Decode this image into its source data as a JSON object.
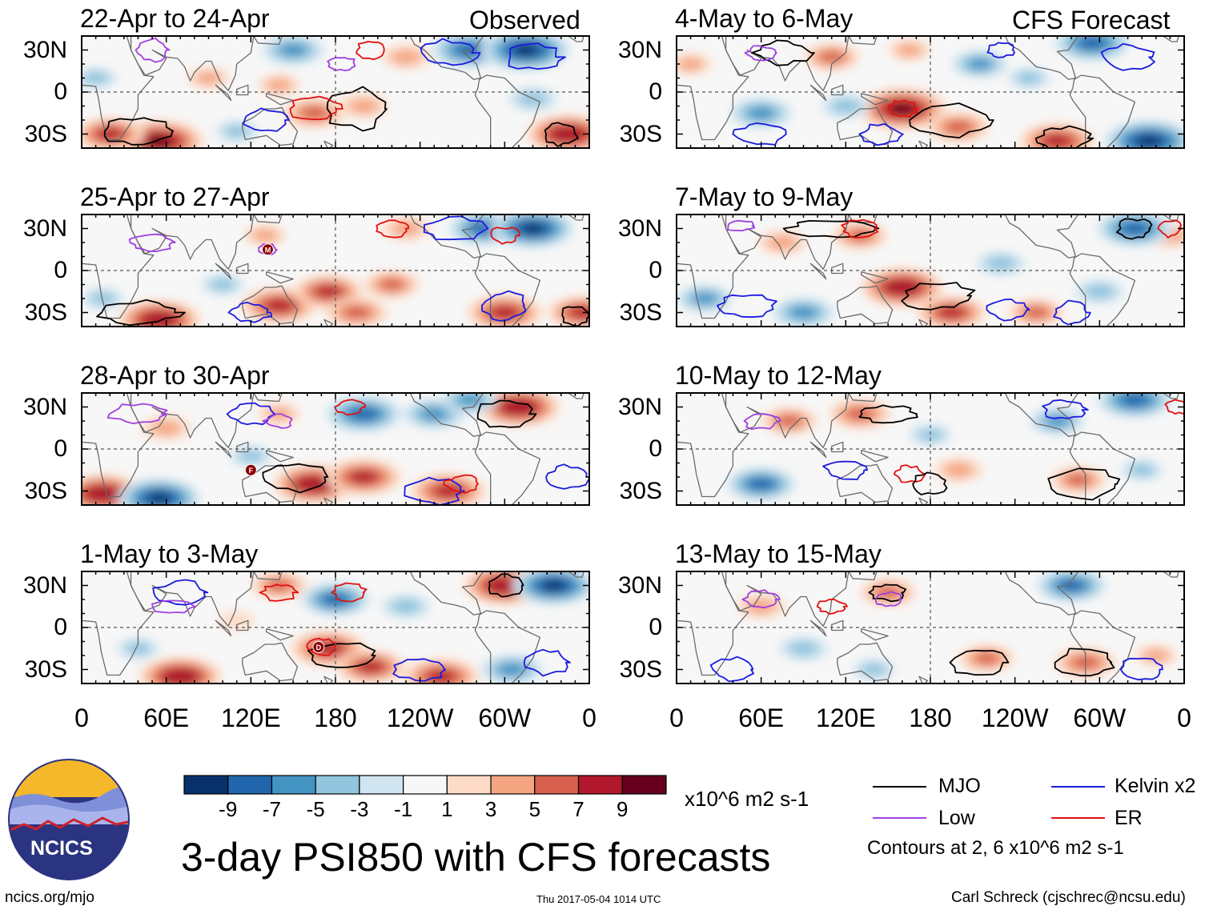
{
  "chart_data": {
    "type": "heatmap",
    "title": "3-day PSI850 with CFS forecasts",
    "variable": "PSI850 anomaly",
    "units": "x10^6 m2 s-1",
    "observed_label": "Observed",
    "forecast_label": "CFS Forecast",
    "x_ticks": [
      "0",
      "60E",
      "120E",
      "180",
      "120W",
      "60W",
      "0"
    ],
    "x_tick_values": [
      0,
      60,
      120,
      180,
      240,
      300,
      360
    ],
    "xlim": [
      0,
      360
    ],
    "y_ticks": [
      "30N",
      "0",
      "30S"
    ],
    "y_tick_values": [
      30,
      0,
      -30
    ],
    "ylim": [
      -40,
      40
    ],
    "panels": [
      {
        "title": "22-Apr to 24-Apr",
        "group": "Observed",
        "column": 0,
        "row": 0
      },
      {
        "title": "25-Apr to 27-Apr",
        "group": "Observed",
        "column": 0,
        "row": 1
      },
      {
        "title": "28-Apr to 30-Apr",
        "group": "Observed",
        "column": 0,
        "row": 2
      },
      {
        "title": "1-May to 3-May",
        "group": "Observed",
        "column": 0,
        "row": 3
      },
      {
        "title": "4-May to 6-May",
        "group": "CFS Forecast",
        "column": 1,
        "row": 0
      },
      {
        "title": "7-May to 9-May",
        "group": "CFS Forecast",
        "column": 1,
        "row": 1
      },
      {
        "title": "10-May to 12-May",
        "group": "CFS Forecast",
        "column": 1,
        "row": 2
      },
      {
        "title": "13-May to 15-May",
        "group": "CFS Forecast",
        "column": 1,
        "row": 3
      }
    ],
    "colorbar": {
      "tick_labels": [
        "-9",
        "-7",
        "-5",
        "-3",
        "-1",
        "1",
        "3",
        "5",
        "7",
        "9"
      ],
      "tick_values": [
        -9,
        -7,
        -5,
        -3,
        -1,
        1,
        3,
        5,
        7,
        9
      ],
      "colors": [
        "#08306b",
        "#2166ac",
        "#4393c3",
        "#92c5de",
        "#d1e5f0",
        "#f7f7f7",
        "#fddbc7",
        "#f4a582",
        "#d6604d",
        "#b2182b",
        "#67001f"
      ]
    },
    "legend": [
      {
        "label": "MJO",
        "color": "#000000"
      },
      {
        "label": "Kelvin x2",
        "color": "#1a1adf"
      },
      {
        "label": "Low",
        "color": "#a040e0"
      },
      {
        "label": "ER",
        "color": "#e01010"
      }
    ],
    "contour_note": "Contours at 2, 6 x10^6 m2 s-1",
    "storm_markers": [
      {
        "panel": 1,
        "label": "M",
        "lon": 132,
        "lat": 15
      },
      {
        "panel": 2,
        "label": "F",
        "lon": 120,
        "lat": -15
      },
      {
        "panel": 3,
        "label": "D",
        "lon": 168,
        "lat": -14
      }
    ],
    "anomaly_features": [
      {
        "panel": 0,
        "lon": 55,
        "lat": -35,
        "value": 10
      },
      {
        "panel": 0,
        "lon": 20,
        "lat": -30,
        "value": 7
      },
      {
        "panel": 0,
        "lon": 345,
        "lat": -30,
        "value": 9
      },
      {
        "panel": 0,
        "lon": 165,
        "lat": -15,
        "value": 6
      },
      {
        "panel": 0,
        "lon": 200,
        "lat": -10,
        "value": 4
      },
      {
        "panel": 0,
        "lon": 90,
        "lat": 10,
        "value": 3
      },
      {
        "panel": 0,
        "lon": 140,
        "lat": 5,
        "value": 3
      },
      {
        "panel": 0,
        "lon": 230,
        "lat": 25,
        "value": 4
      },
      {
        "panel": 0,
        "lon": 275,
        "lat": 30,
        "value": -8
      },
      {
        "panel": 0,
        "lon": 315,
        "lat": 30,
        "value": -10
      },
      {
        "panel": 0,
        "lon": 320,
        "lat": -5,
        "value": -4
      },
      {
        "panel": 0,
        "lon": 10,
        "lat": 10,
        "value": -3
      },
      {
        "panel": 0,
        "lon": 150,
        "lat": 30,
        "value": -6
      },
      {
        "panel": 0,
        "lon": 110,
        "lat": -28,
        "value": -3
      },
      {
        "panel": 1,
        "lon": 55,
        "lat": -35,
        "value": 9
      },
      {
        "panel": 1,
        "lon": 140,
        "lat": -25,
        "value": 8
      },
      {
        "panel": 1,
        "lon": 175,
        "lat": -15,
        "value": 7
      },
      {
        "panel": 1,
        "lon": 220,
        "lat": -10,
        "value": 5
      },
      {
        "panel": 1,
        "lon": 195,
        "lat": -30,
        "value": 6
      },
      {
        "panel": 1,
        "lon": 300,
        "lat": -30,
        "value": 8
      },
      {
        "panel": 1,
        "lon": 355,
        "lat": -30,
        "value": 7
      },
      {
        "panel": 1,
        "lon": 230,
        "lat": 30,
        "value": 4
      },
      {
        "panel": 1,
        "lon": 285,
        "lat": 30,
        "value": -7
      },
      {
        "panel": 1,
        "lon": 320,
        "lat": 30,
        "value": -9
      },
      {
        "panel": 1,
        "lon": 100,
        "lat": -10,
        "value": -3
      },
      {
        "panel": 1,
        "lon": 15,
        "lat": -20,
        "value": -3
      },
      {
        "panel": 1,
        "lon": 130,
        "lat": 25,
        "value": 3
      },
      {
        "panel": 2,
        "lon": 15,
        "lat": -32,
        "value": 9
      },
      {
        "panel": 2,
        "lon": 55,
        "lat": -35,
        "value": -9
      },
      {
        "panel": 2,
        "lon": 165,
        "lat": -25,
        "value": 9
      },
      {
        "panel": 2,
        "lon": 200,
        "lat": -20,
        "value": 8
      },
      {
        "panel": 2,
        "lon": 260,
        "lat": -30,
        "value": 8
      },
      {
        "panel": 2,
        "lon": 310,
        "lat": 30,
        "value": 9
      },
      {
        "panel": 2,
        "lon": 200,
        "lat": 25,
        "value": -8
      },
      {
        "panel": 2,
        "lon": 250,
        "lat": 25,
        "value": -6
      },
      {
        "panel": 2,
        "lon": 275,
        "lat": 35,
        "value": -5
      },
      {
        "panel": 2,
        "lon": 120,
        "lat": -5,
        "value": -3
      },
      {
        "panel": 2,
        "lon": 60,
        "lat": 15,
        "value": 4
      },
      {
        "panel": 2,
        "lon": 140,
        "lat": 25,
        "value": 3
      },
      {
        "panel": 3,
        "lon": 70,
        "lat": -35,
        "value": 9
      },
      {
        "panel": 3,
        "lon": 175,
        "lat": -15,
        "value": 8
      },
      {
        "panel": 3,
        "lon": 205,
        "lat": -28,
        "value": 7
      },
      {
        "panel": 3,
        "lon": 255,
        "lat": -35,
        "value": 8
      },
      {
        "panel": 3,
        "lon": 300,
        "lat": 30,
        "value": 9
      },
      {
        "panel": 3,
        "lon": 335,
        "lat": 30,
        "value": -9
      },
      {
        "panel": 3,
        "lon": 180,
        "lat": 20,
        "value": -7
      },
      {
        "panel": 3,
        "lon": 230,
        "lat": 15,
        "value": -4
      },
      {
        "panel": 3,
        "lon": 305,
        "lat": -30,
        "value": -6
      },
      {
        "panel": 3,
        "lon": 40,
        "lat": -15,
        "value": -3
      },
      {
        "panel": 3,
        "lon": 140,
        "lat": 30,
        "value": 5
      },
      {
        "panel": 3,
        "lon": 110,
        "lat": 5,
        "value": 2
      },
      {
        "panel": 4,
        "lon": 160,
        "lat": -12,
        "value": 10
      },
      {
        "panel": 4,
        "lon": 200,
        "lat": -25,
        "value": 6
      },
      {
        "panel": 4,
        "lon": 270,
        "lat": -35,
        "value": 8
      },
      {
        "panel": 4,
        "lon": 110,
        "lat": 25,
        "value": 5
      },
      {
        "panel": 4,
        "lon": 165,
        "lat": 30,
        "value": 3
      },
      {
        "panel": 4,
        "lon": 335,
        "lat": -35,
        "value": -10
      },
      {
        "panel": 4,
        "lon": 295,
        "lat": 35,
        "value": -8
      },
      {
        "panel": 4,
        "lon": 60,
        "lat": -15,
        "value": -6
      },
      {
        "panel": 4,
        "lon": 120,
        "lat": -10,
        "value": -4
      },
      {
        "panel": 4,
        "lon": 215,
        "lat": 20,
        "value": -5
      },
      {
        "panel": 4,
        "lon": 250,
        "lat": 10,
        "value": -3
      },
      {
        "panel": 4,
        "lon": 10,
        "lat": 20,
        "value": 3
      },
      {
        "panel": 5,
        "lon": 160,
        "lat": -12,
        "value": 9
      },
      {
        "panel": 5,
        "lon": 195,
        "lat": -30,
        "value": 7
      },
      {
        "panel": 5,
        "lon": 255,
        "lat": -30,
        "value": 5
      },
      {
        "panel": 5,
        "lon": 75,
        "lat": 20,
        "value": 4
      },
      {
        "panel": 5,
        "lon": 130,
        "lat": 25,
        "value": 5
      },
      {
        "panel": 5,
        "lon": 350,
        "lat": 25,
        "value": 4
      },
      {
        "panel": 5,
        "lon": 20,
        "lat": -20,
        "value": -5
      },
      {
        "panel": 5,
        "lon": 90,
        "lat": -30,
        "value": -6
      },
      {
        "panel": 5,
        "lon": 230,
        "lat": 5,
        "value": -4
      },
      {
        "panel": 5,
        "lon": 300,
        "lat": -15,
        "value": -4
      },
      {
        "panel": 5,
        "lon": 325,
        "lat": 30,
        "value": -8
      },
      {
        "panel": 6,
        "lon": 80,
        "lat": 20,
        "value": 5
      },
      {
        "panel": 6,
        "lon": 130,
        "lat": 25,
        "value": 6
      },
      {
        "panel": 6,
        "lon": 200,
        "lat": -15,
        "value": 4
      },
      {
        "panel": 6,
        "lon": 285,
        "lat": -22,
        "value": 5
      },
      {
        "panel": 6,
        "lon": 60,
        "lat": -25,
        "value": -7
      },
      {
        "panel": 6,
        "lon": 270,
        "lat": 20,
        "value": -5
      },
      {
        "panel": 6,
        "lon": 325,
        "lat": 35,
        "value": -8
      },
      {
        "panel": 6,
        "lon": 180,
        "lat": 10,
        "value": -3
      },
      {
        "panel": 6,
        "lon": 330,
        "lat": -15,
        "value": -3
      },
      {
        "panel": 7,
        "lon": 220,
        "lat": -22,
        "value": 5
      },
      {
        "panel": 7,
        "lon": 290,
        "lat": -25,
        "value": 6
      },
      {
        "panel": 7,
        "lon": 60,
        "lat": 15,
        "value": 4
      },
      {
        "panel": 7,
        "lon": 150,
        "lat": 25,
        "value": 5
      },
      {
        "panel": 7,
        "lon": 340,
        "lat": -20,
        "value": 3
      },
      {
        "panel": 7,
        "lon": 280,
        "lat": 30,
        "value": -7
      },
      {
        "panel": 7,
        "lon": 90,
        "lat": -15,
        "value": -4
      },
      {
        "panel": 7,
        "lon": 140,
        "lat": -30,
        "value": -3
      }
    ]
  },
  "footer": {
    "logo_text": "NCICS",
    "url": "ncics.org/mjo",
    "timestamp": "Thu 2017-05-04 1014 UTC",
    "credit": "Carl Schreck (cjschrec@ncsu.edu)"
  },
  "colors": {
    "logo_sky": "#f5b82a",
    "logo_circle": "#2b3480",
    "logo_hills": "#7f8fd8",
    "logo_red": "#d0202a"
  }
}
